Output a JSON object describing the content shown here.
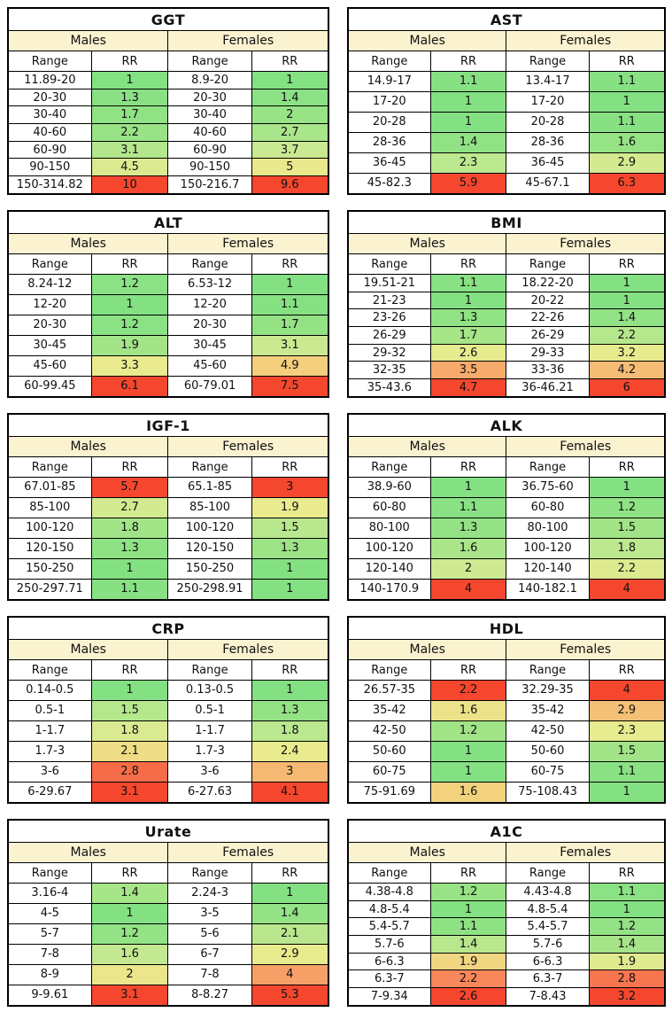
{
  "page": {
    "background": "#ffffff"
  },
  "style": {
    "header_bg": "#fbf2d0",
    "border_color": "#000000",
    "text_color": "#111111",
    "rr_color_scale": [
      [
        0.0,
        "#84e183"
      ],
      [
        0.15,
        "#9ce386"
      ],
      [
        0.3,
        "#c6e992"
      ],
      [
        0.45,
        "#e9eb8e"
      ],
      [
        0.6,
        "#f3cf7e"
      ],
      [
        0.75,
        "#f8875c"
      ],
      [
        1.0,
        "#f4472e"
      ]
    ]
  },
  "chart_data": {
    "type": "table",
    "layout": "2-column grid of 10 heatmap tables",
    "column_groups": [
      "Males",
      "Females"
    ],
    "columns": [
      "Range",
      "RR",
      "Range",
      "RR"
    ],
    "color_rule": "RR cell background interpolated on rr_color_scale, normalized per column from min RR (green) to max RR (red)",
    "tables": [
      {
        "title": "GGT",
        "rows": [
          [
            "11.89-20",
            "1",
            "8.9-20",
            "1"
          ],
          [
            "20-30",
            "1.3",
            "20-30",
            "1.4"
          ],
          [
            "30-40",
            "1.7",
            "30-40",
            "2"
          ],
          [
            "40-60",
            "2.2",
            "40-60",
            "2.7"
          ],
          [
            "60-90",
            "3.1",
            "60-90",
            "3.7"
          ],
          [
            "90-150",
            "4.5",
            "90-150",
            "5"
          ],
          [
            "150-314.82",
            "10",
            "150-216.7",
            "9.6"
          ]
        ]
      },
      {
        "title": "AST",
        "rows": [
          [
            "14.9-17",
            "1.1",
            "13.4-17",
            "1.1"
          ],
          [
            "17-20",
            "1",
            "17-20",
            "1"
          ],
          [
            "20-28",
            "1",
            "20-28",
            "1.1"
          ],
          [
            "28-36",
            "1.4",
            "28-36",
            "1.6"
          ],
          [
            "36-45",
            "2.3",
            "36-45",
            "2.9"
          ],
          [
            "45-82.3",
            "5.9",
            "45-67.1",
            "6.3"
          ]
        ]
      },
      {
        "title": "ALT",
        "rows": [
          [
            "8.24-12",
            "1.2",
            "6.53-12",
            "1"
          ],
          [
            "12-20",
            "1",
            "12-20",
            "1.1"
          ],
          [
            "20-30",
            "1.2",
            "20-30",
            "1.7"
          ],
          [
            "30-45",
            "1.9",
            "30-45",
            "3.1"
          ],
          [
            "45-60",
            "3.3",
            "45-60",
            "4.9"
          ],
          [
            "60-99.45",
            "6.1",
            "60-79.01",
            "7.5"
          ]
        ]
      },
      {
        "title": "BMI",
        "rows": [
          [
            "19.51-21",
            "1.1",
            "18.22-20",
            "1"
          ],
          [
            "21-23",
            "1",
            "20-22",
            "1"
          ],
          [
            "23-26",
            "1.3",
            "22-26",
            "1.4"
          ],
          [
            "26-29",
            "1.7",
            "26-29",
            "2.2"
          ],
          [
            "29-32",
            "2.6",
            "29-33",
            "3.2"
          ],
          [
            "32-35",
            "3.5",
            "33-36",
            "4.2"
          ],
          [
            "35-43.6",
            "4.7",
            "36-46.21",
            "6"
          ]
        ]
      },
      {
        "title": "IGF-1",
        "rows": [
          [
            "67.01-85",
            "5.7",
            "65.1-85",
            "3"
          ],
          [
            "85-100",
            "2.7",
            "85-100",
            "1.9"
          ],
          [
            "100-120",
            "1.8",
            "100-120",
            "1.5"
          ],
          [
            "120-150",
            "1.3",
            "120-150",
            "1.3"
          ],
          [
            "150-250",
            "1",
            "150-250",
            "1"
          ],
          [
            "250-297.71",
            "1.1",
            "250-298.91",
            "1"
          ]
        ]
      },
      {
        "title": "ALK",
        "rows": [
          [
            "38.9-60",
            "1",
            "36.75-60",
            "1"
          ],
          [
            "60-80",
            "1.1",
            "60-80",
            "1.2"
          ],
          [
            "80-100",
            "1.3",
            "80-100",
            "1.5"
          ],
          [
            "100-120",
            "1.6",
            "100-120",
            "1.8"
          ],
          [
            "120-140",
            "2",
            "120-140",
            "2.2"
          ],
          [
            "140-170.9",
            "4",
            "140-182.1",
            "4"
          ]
        ]
      },
      {
        "title": "CRP",
        "rows": [
          [
            "0.14-0.5",
            "1",
            "0.13-0.5",
            "1"
          ],
          [
            "0.5-1",
            "1.5",
            "0.5-1",
            "1.3"
          ],
          [
            "1-1.7",
            "1.8",
            "1-1.7",
            "1.8"
          ],
          [
            "1.7-3",
            "2.1",
            "1.7-3",
            "2.4"
          ],
          [
            "3-6",
            "2.8",
            "3-6",
            "3"
          ],
          [
            "6-29.67",
            "3.1",
            "6-27.63",
            "4.1"
          ]
        ]
      },
      {
        "title": "HDL",
        "rows": [
          [
            "26.57-35",
            "2.2",
            "32.29-35",
            "4"
          ],
          [
            "35-42",
            "1.6",
            "35-42",
            "2.9"
          ],
          [
            "42-50",
            "1.2",
            "42-50",
            "2.3"
          ],
          [
            "50-60",
            "1",
            "50-60",
            "1.5"
          ],
          [
            "60-75",
            "1",
            "60-75",
            "1.1"
          ],
          [
            "75-91.69",
            "1.6",
            "75-108.43",
            "1"
          ]
        ],
        "color_overrides": [
          {
            "row": 5,
            "col": 1,
            "color": "#f3d27e"
          }
        ]
      },
      {
        "title": "Urate",
        "rows": [
          [
            "3.16-4",
            "1.4",
            "2.24-3",
            "1"
          ],
          [
            "4-5",
            "1",
            "3-5",
            "1.4"
          ],
          [
            "5-7",
            "1.2",
            "5-6",
            "2.1"
          ],
          [
            "7-8",
            "1.6",
            "6-7",
            "2.9"
          ],
          [
            "8-9",
            "2",
            "7-8",
            "4"
          ],
          [
            "9-9.61",
            "3.1",
            "8-8.27",
            "5.3"
          ]
        ]
      },
      {
        "title": "A1C",
        "rows": [
          [
            "4.38-4.8",
            "1.2",
            "4.43-4.8",
            "1.1"
          ],
          [
            "4.8-5.4",
            "1",
            "4.8-5.4",
            "1"
          ],
          [
            "5.4-5.7",
            "1.1",
            "5.4-5.7",
            "1.2"
          ],
          [
            "5.7-6",
            "1.4",
            "5.7-6",
            "1.4"
          ],
          [
            "6-6.3",
            "1.9",
            "6-6.3",
            "1.9"
          ],
          [
            "6.3-7",
            "2.2",
            "6.3-7",
            "2.8"
          ],
          [
            "7-9.34",
            "2.6",
            "7-8.43",
            "3.2"
          ]
        ]
      }
    ]
  }
}
